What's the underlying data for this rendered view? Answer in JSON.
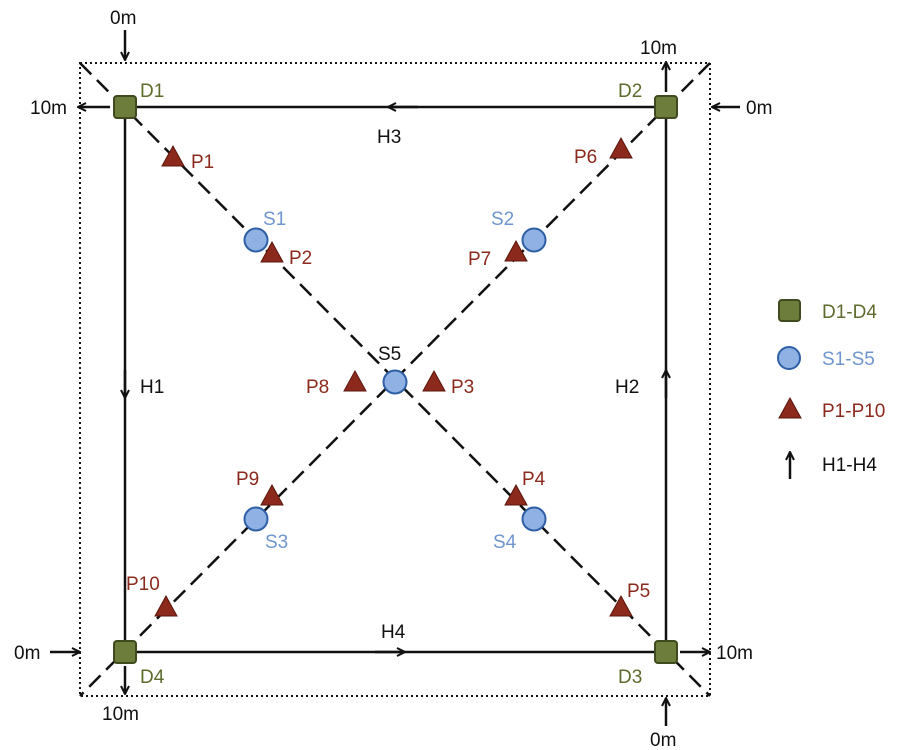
{
  "colors": {
    "drone_fill": "#6d7d3b",
    "drone_stroke": "#3f4a1f",
    "sensor_fill": "#8fb1e3",
    "sensor_stroke": "#2f5fa6",
    "point_fill": "#8b2a1c",
    "line": "#111111"
  },
  "drones": [
    "D1",
    "D2",
    "D3",
    "D4"
  ],
  "sensors": [
    "S1",
    "S2",
    "S3",
    "S4",
    "S5"
  ],
  "points": [
    "P1",
    "P2",
    "P3",
    "P4",
    "P5",
    "P6",
    "P7",
    "P8",
    "P9",
    "P10"
  ],
  "paths": [
    "H1",
    "H2",
    "H3",
    "H4"
  ],
  "distance_labels": {
    "d1_top": "0m",
    "d1_left": "10m",
    "d2_top": "10m",
    "d2_right": "0m",
    "d3_right": "10m",
    "d3_bottom": "0m",
    "d4_left": "0m",
    "d4_bottom": "10m"
  },
  "legend": {
    "drones": "D1-D4",
    "sensors": "S1-S5",
    "points": "P1-P10",
    "paths": "H1-H4"
  }
}
